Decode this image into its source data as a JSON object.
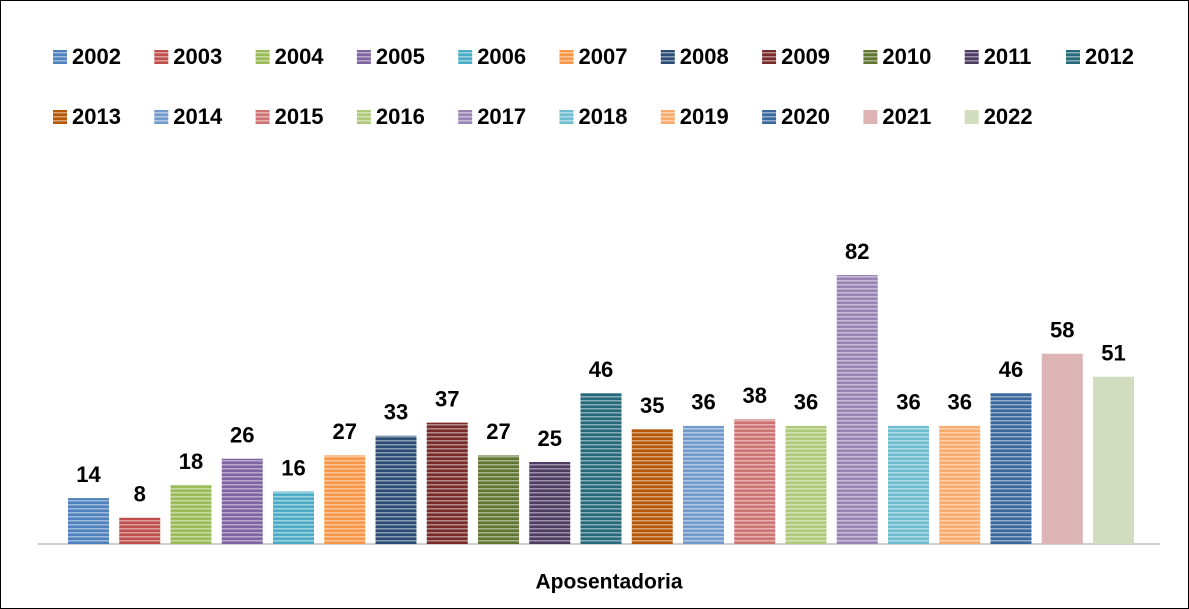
{
  "chart_data": {
    "type": "bar",
    "categories": [
      "Aposentadoria"
    ],
    "series": [
      {
        "name": "2002",
        "color": "#4f81bd",
        "striped": true,
        "values": [
          14
        ]
      },
      {
        "name": "2003",
        "color": "#c0504d",
        "striped": true,
        "values": [
          8
        ]
      },
      {
        "name": "2004",
        "color": "#9bbb59",
        "striped": true,
        "values": [
          18
        ]
      },
      {
        "name": "2005",
        "color": "#8064a2",
        "striped": true,
        "values": [
          26
        ]
      },
      {
        "name": "2006",
        "color": "#4bacc6",
        "striped": true,
        "values": [
          16
        ]
      },
      {
        "name": "2007",
        "color": "#f79646",
        "striped": true,
        "values": [
          27
        ]
      },
      {
        "name": "2008",
        "color": "#2c4d75",
        "striped": true,
        "values": [
          33
        ]
      },
      {
        "name": "2009",
        "color": "#772c2a",
        "striped": true,
        "values": [
          37
        ]
      },
      {
        "name": "2010",
        "color": "#5f7530",
        "striped": true,
        "values": [
          27
        ]
      },
      {
        "name": "2011",
        "color": "#4d3b62",
        "striped": true,
        "values": [
          25
        ]
      },
      {
        "name": "2012",
        "color": "#276a7c",
        "striped": true,
        "values": [
          46
        ]
      },
      {
        "name": "2013",
        "color": "#b65708",
        "striped": true,
        "values": [
          35
        ]
      },
      {
        "name": "2014",
        "color": "#729aca",
        "striped": true,
        "values": [
          36
        ]
      },
      {
        "name": "2015",
        "color": "#cd7371",
        "striped": true,
        "values": [
          38
        ]
      },
      {
        "name": "2016",
        "color": "#afc97a",
        "striped": true,
        "values": [
          36
        ]
      },
      {
        "name": "2017",
        "color": "#9983b5",
        "striped": true,
        "values": [
          82
        ]
      },
      {
        "name": "2018",
        "color": "#6fbdd1",
        "striped": true,
        "values": [
          36
        ]
      },
      {
        "name": "2019",
        "color": "#f9ab6b",
        "striped": true,
        "values": [
          36
        ]
      },
      {
        "name": "2020",
        "color": "#3a679c",
        "striped": true,
        "values": [
          46
        ]
      },
      {
        "name": "2021",
        "color": "#dcb4b4",
        "striped": false,
        "values": [
          58
        ]
      },
      {
        "name": "2022",
        "color": "#d2dcbe",
        "striped": false,
        "values": [
          51
        ]
      }
    ]
  }
}
